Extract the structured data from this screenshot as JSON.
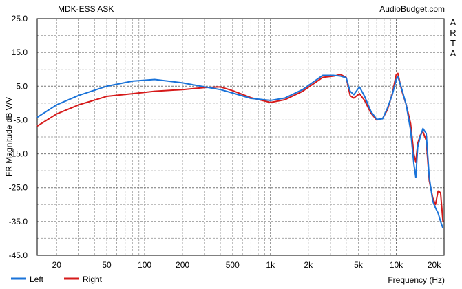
{
  "chart_data": {
    "type": "line",
    "title": "MDK-ESS ASK",
    "source_label": "AudioBudget.com",
    "side_label": "ARTA",
    "xlabel": "Frequency (Hz)",
    "ylabel": "FR Magnitude dB V/V",
    "x_scale": "log",
    "xlim": [
      14,
      24000
    ],
    "ylim": [
      -45,
      25
    ],
    "grid": true,
    "legend_position": "bottom-left",
    "x_ticks": [
      {
        "value": 20,
        "label": "20"
      },
      {
        "value": 50,
        "label": "50"
      },
      {
        "value": 100,
        "label": "100"
      },
      {
        "value": 200,
        "label": "200"
      },
      {
        "value": 500,
        "label": "500"
      },
      {
        "value": 1000,
        "label": "1k"
      },
      {
        "value": 2000,
        "label": "2k"
      },
      {
        "value": 5000,
        "label": "5k"
      },
      {
        "value": 10000,
        "label": "10k"
      },
      {
        "value": 20000,
        "label": "20k"
      }
    ],
    "y_ticks": [
      {
        "value": 25,
        "label": "25.0"
      },
      {
        "value": 15,
        "label": "15.0"
      },
      {
        "value": 5,
        "label": "5.0"
      },
      {
        "value": -5,
        "label": "-5.0"
      },
      {
        "value": -15,
        "label": "-15.0"
      },
      {
        "value": -25,
        "label": "-25.0"
      },
      {
        "value": -35,
        "label": "-35.0"
      },
      {
        "value": -45,
        "label": "-45.0"
      }
    ],
    "series": [
      {
        "name": "Left",
        "color": "#1a73d9",
        "x": [
          14,
          20,
          30,
          50,
          80,
          120,
          200,
          300,
          400,
          500,
          700,
          1000,
          1300,
          1800,
          2600,
          3200,
          3600,
          4000,
          4300,
          4600,
          5100,
          5600,
          6300,
          7000,
          7800,
          8500,
          9300,
          10000,
          10300,
          11000,
          12000,
          13000,
          13800,
          14300,
          14800,
          15500,
          16300,
          17300,
          18300,
          19500,
          20500,
          21500,
          22500,
          23500
        ],
        "y": [
          -4.2,
          -0.5,
          2.3,
          5,
          6.5,
          7,
          6,
          4.8,
          4,
          3,
          1.4,
          0.8,
          1.5,
          4,
          8.2,
          8.2,
          8.0,
          7.5,
          3.5,
          2.5,
          4.8,
          2.0,
          -2.5,
          -4.8,
          -4.6,
          -1.5,
          2.5,
          7.0,
          7.8,
          4.5,
          -0.5,
          -8,
          -18,
          -22,
          -13,
          -10,
          -7.5,
          -9,
          -22,
          -29,
          -31,
          -32.5,
          -35,
          -37
        ]
      },
      {
        "name": "Right",
        "color": "#d61a1a",
        "x": [
          14,
          20,
          30,
          50,
          80,
          120,
          200,
          300,
          400,
          500,
          700,
          1000,
          1300,
          1800,
          2600,
          3200,
          3600,
          4000,
          4300,
          4600,
          5100,
          5600,
          6300,
          7000,
          7800,
          8500,
          9300,
          10000,
          10300,
          11000,
          12000,
          13000,
          13800,
          14300,
          14800,
          15500,
          16300,
          17300,
          18300,
          19500,
          20500,
          21500,
          22500,
          23500
        ],
        "y": [
          -6.8,
          -3.2,
          -0.5,
          2,
          2.8,
          3.5,
          4,
          4.6,
          4.8,
          3.7,
          1.6,
          0.2,
          1.0,
          3.5,
          7.6,
          8.0,
          8.5,
          7.6,
          2.2,
          1.5,
          2.8,
          0.8,
          -3.0,
          -5.0,
          -4.5,
          -2.0,
          2.8,
          8.5,
          8.8,
          4.0,
          -0.5,
          -6,
          -15,
          -17.5,
          -12,
          -9.5,
          -8.5,
          -11,
          -23,
          -28,
          -30,
          -26,
          -26.5,
          -35
        ]
      }
    ]
  }
}
